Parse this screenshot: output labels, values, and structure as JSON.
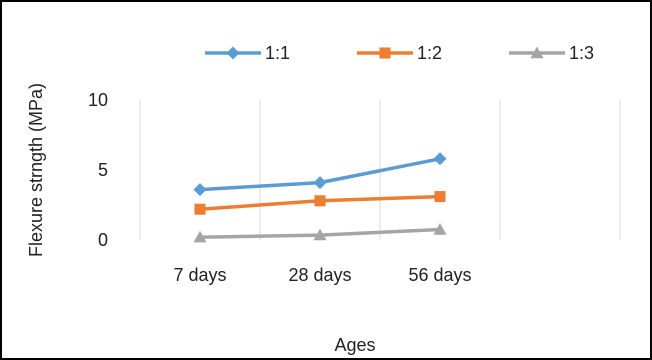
{
  "chart_data": {
    "type": "line",
    "title": "",
    "xlabel": "Ages",
    "ylabel": "Flexure strngth (MPa)",
    "categories": [
      "7 days",
      "28 days",
      "56 days"
    ],
    "ylim": [
      0,
      10
    ],
    "yticks": [
      0,
      5,
      10
    ],
    "grid": "vertical",
    "legend_position": "top",
    "series": [
      {
        "name": "1:1",
        "values": [
          3.6,
          4.1,
          5.8
        ],
        "color": "#5B9BD5",
        "marker": "diamond"
      },
      {
        "name": "1:2",
        "values": [
          2.2,
          2.8,
          3.1
        ],
        "color": "#ED7D31",
        "marker": "square"
      },
      {
        "name": "1:3",
        "values": [
          0.2,
          0.35,
          0.75
        ],
        "color": "#A5A5A5",
        "marker": "triangle"
      }
    ]
  }
}
